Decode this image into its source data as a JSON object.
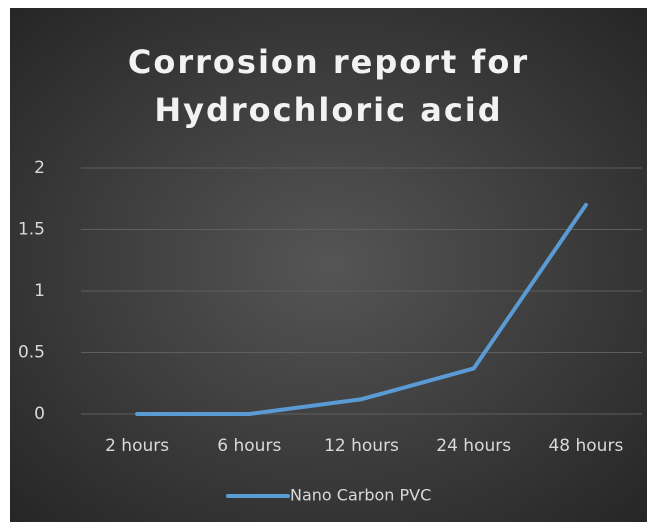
{
  "chart_data": {
    "type": "line",
    "title": "Corrosion report for Hydrochloric acid",
    "categories": [
      "2 hours",
      "6 hours",
      "12 hours",
      "24 hours",
      "48 hours"
    ],
    "series": [
      {
        "name": "Nano Carbon PVC",
        "color": "#5b9bd5",
        "values": [
          0,
          0,
          0.12,
          0.37,
          1.7
        ]
      }
    ],
    "ylim": [
      0,
      2
    ],
    "yticks": [
      0,
      0.5,
      1,
      1.5,
      2
    ],
    "grid": true,
    "legend": "bottom"
  }
}
